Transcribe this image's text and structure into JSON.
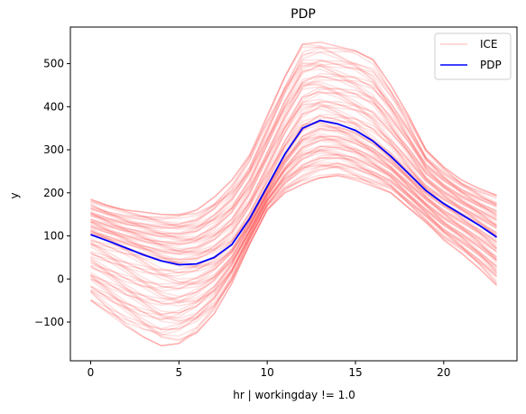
{
  "chart_data": {
    "type": "line",
    "title": "PDP",
    "xlabel": "hr | workingday != 1.0",
    "ylabel": "y",
    "xlim": [
      -1.15,
      24.15
    ],
    "ylim": [
      -190,
      585
    ],
    "xticks": [
      0,
      5,
      10,
      15,
      20
    ],
    "yticks": [
      -100,
      0,
      100,
      200,
      300,
      400,
      500
    ],
    "grid": false,
    "legend": {
      "position": "top-right",
      "entries": [
        "ICE",
        "PDP"
      ]
    },
    "colors": {
      "ice": "#ff0000",
      "pdp": "#0000ff"
    },
    "x": [
      0,
      1,
      2,
      3,
      4,
      5,
      6,
      7,
      8,
      9,
      10,
      11,
      12,
      13,
      14,
      15,
      16,
      17,
      18,
      19,
      20,
      21,
      22,
      23
    ],
    "series": [
      {
        "name": "PDP",
        "values": [
          103,
          88,
          72,
          56,
          42,
          33,
          35,
          50,
          80,
          140,
          215,
          290,
          350,
          368,
          360,
          345,
          320,
          285,
          245,
          205,
          175,
          150,
          125,
          97
        ]
      }
    ],
    "ice_envelope": {
      "upper": [
        185,
        170,
        160,
        155,
        150,
        150,
        160,
        190,
        230,
        290,
        380,
        470,
        545,
        550,
        540,
        530,
        510,
        450,
        380,
        300,
        260,
        230,
        210,
        195
      ],
      "lower": [
        -50,
        -80,
        -110,
        -135,
        -155,
        -150,
        -125,
        -80,
        -10,
        80,
        160,
        200,
        220,
        235,
        240,
        230,
        215,
        200,
        165,
        130,
        90,
        60,
        25,
        -15
      ]
    }
  }
}
